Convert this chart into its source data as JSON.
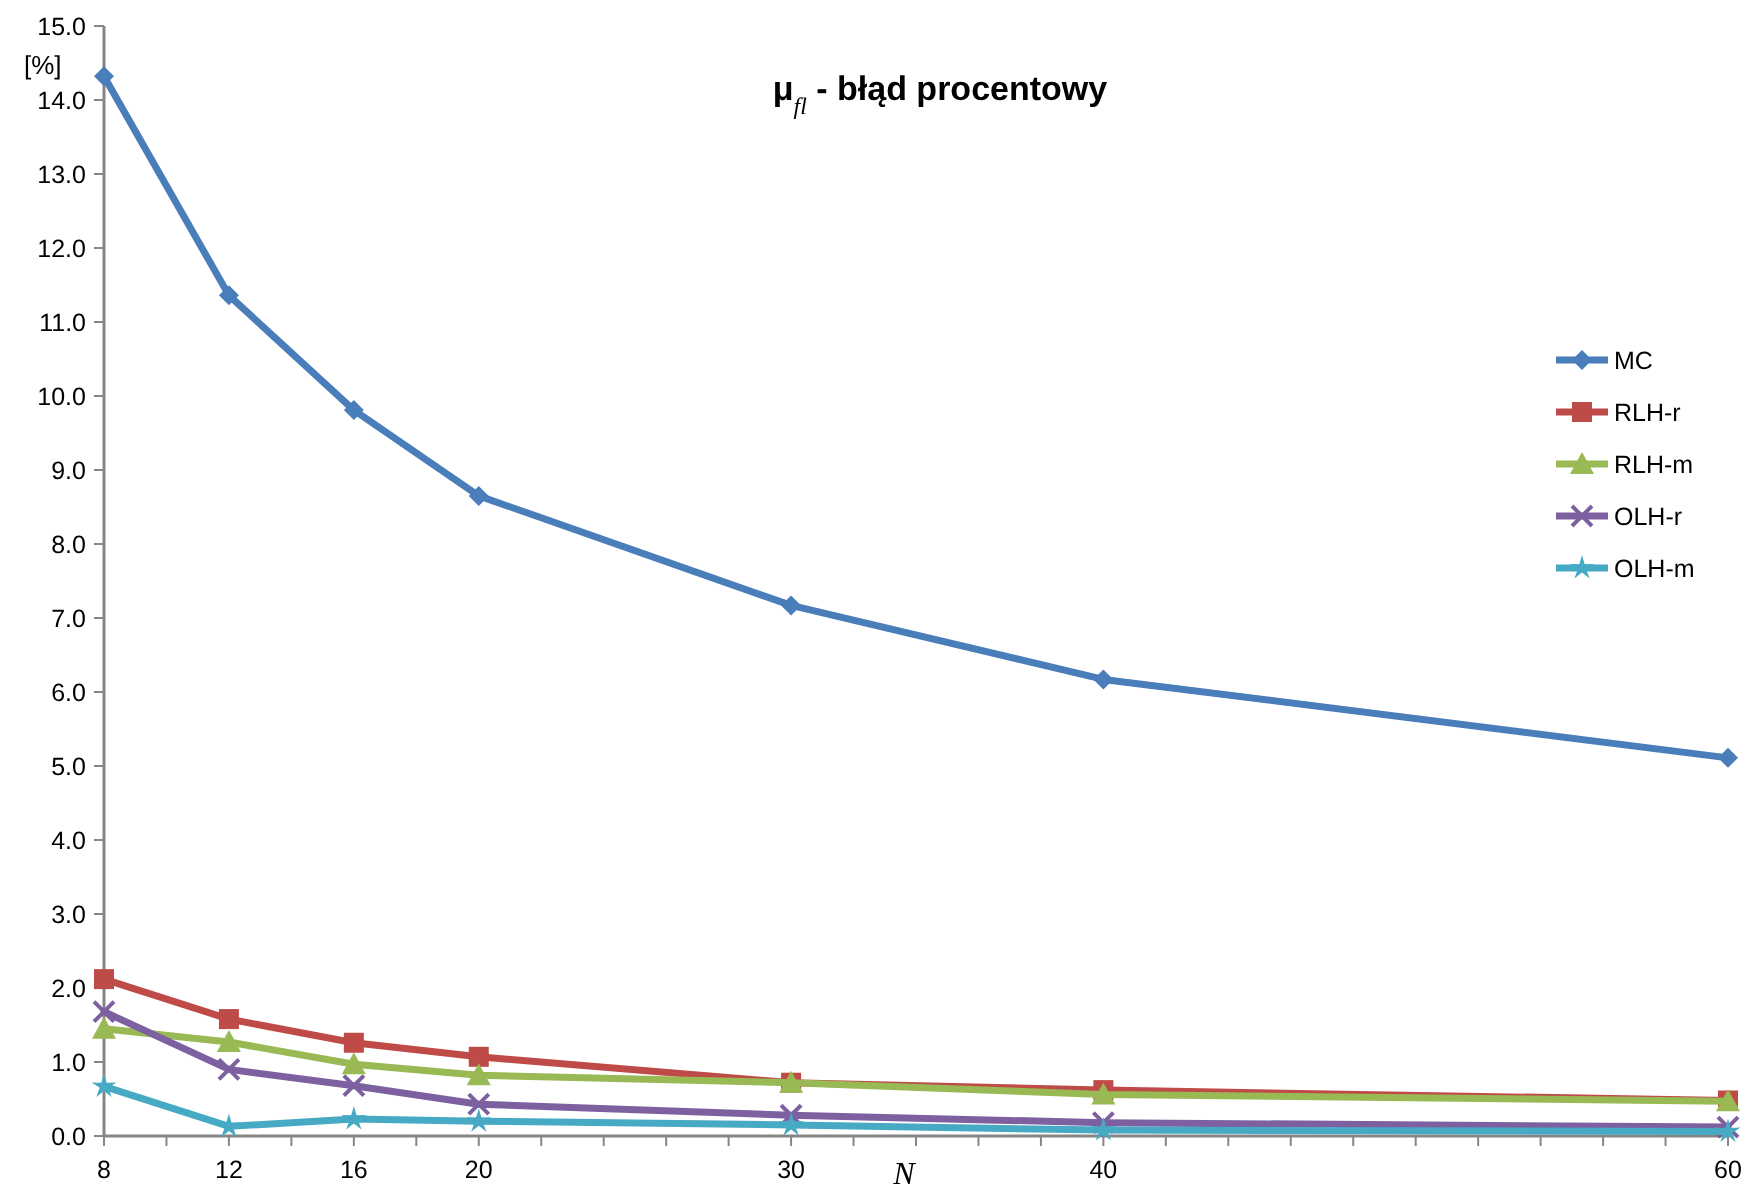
{
  "chart_data": {
    "type": "line",
    "title": "μ$_{fl}$ - błąd procentowy",
    "xlabel": "N",
    "ylabel": "[%]",
    "x": [
      8,
      12,
      16,
      20,
      30,
      40,
      60
    ],
    "xlim": [
      8,
      60
    ],
    "xticks": [
      8,
      {
        "value": 10,
        "label": null
      },
      12,
      {
        "value": 14,
        "label": null
      },
      16,
      {
        "value": 18,
        "label": null
      },
      20,
      {
        "value": 22,
        "label": null
      },
      {
        "value": 24,
        "label": null
      },
      {
        "value": 26,
        "label": null
      },
      {
        "value": 28,
        "label": null
      },
      30,
      {
        "value": 32,
        "label": null
      },
      {
        "value": 34,
        "label": null
      },
      {
        "value": 36,
        "label": null
      },
      {
        "value": 38,
        "label": null
      },
      40,
      {
        "value": 42,
        "label": null
      },
      {
        "value": 44,
        "label": null
      },
      {
        "value": 46,
        "label": null
      },
      {
        "value": 48,
        "label": null
      },
      {
        "value": 50,
        "label": null
      },
      {
        "value": 52,
        "label": null
      },
      {
        "value": 54,
        "label": null
      },
      {
        "value": 56,
        "label": null
      },
      {
        "value": 58,
        "label": null
      },
      60
    ],
    "ylim": [
      0,
      15
    ],
    "yticks": [
      {
        "value": 0,
        "label": "0.0"
      },
      {
        "value": 1,
        "label": "1.0"
      },
      {
        "value": 2,
        "label": "2.0"
      },
      {
        "value": 3,
        "label": "3.0"
      },
      {
        "value": 4,
        "label": "4.0"
      },
      {
        "value": 5,
        "label": "5.0"
      },
      {
        "value": 6,
        "label": "6.0"
      },
      {
        "value": 7,
        "label": "7.0"
      },
      {
        "value": 8,
        "label": "8.0"
      },
      {
        "value": 9,
        "label": "9.0"
      },
      {
        "value": 10,
        "label": "10.0"
      },
      {
        "value": 11,
        "label": "11.0"
      },
      {
        "value": 12,
        "label": "12.0"
      },
      {
        "value": 13,
        "label": "13.0"
      },
      {
        "value": 14,
        "label": "14.0"
      },
      {
        "value": 15,
        "label": "15.0"
      }
    ],
    "grid": false,
    "legend": "right",
    "line_style": "solid",
    "series": [
      {
        "name": "MC",
        "color": "#4a7ebb",
        "marker": "diamond",
        "values": [
          14.32,
          11.36,
          9.81,
          8.65,
          7.17,
          6.17,
          5.11
        ]
      },
      {
        "name": "RLH-r",
        "color": "#be4b48",
        "marker": "square",
        "values": [
          2.12,
          1.58,
          1.26,
          1.07,
          0.72,
          0.62,
          0.48
        ]
      },
      {
        "name": "RLH-m",
        "color": "#98b954",
        "marker": "triangle",
        "values": [
          1.45,
          1.27,
          0.97,
          0.82,
          0.72,
          0.56,
          0.47
        ]
      },
      {
        "name": "OLH-r",
        "color": "#7d60a0",
        "marker": "cross",
        "values": [
          1.68,
          0.9,
          0.68,
          0.43,
          0.28,
          0.18,
          0.12
        ]
      },
      {
        "name": "OLH-m",
        "color": "#46aac5",
        "marker": "star",
        "values": [
          0.67,
          0.13,
          0.23,
          0.2,
          0.15,
          0.08,
          0.06
        ]
      }
    ]
  }
}
